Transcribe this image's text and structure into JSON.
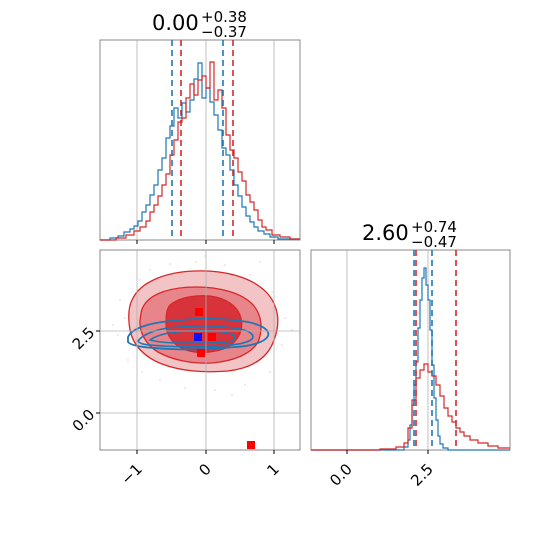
{
  "colors": {
    "series_a": "#1f77b4",
    "series_b": "#d62728",
    "grid": "#b0b0b0",
    "spine": "#888888"
  },
  "chart_data": {
    "type": "corner",
    "panels": [
      {
        "id": "p0-hist",
        "type": "histogram",
        "title": {
          "value": "0.00",
          "upper": "+0.38",
          "lower": "−0.37"
        },
        "xlim": [
          -1.5,
          1.35
        ],
        "xticks": [
          -1,
          0,
          1
        ],
        "series": [
          {
            "color_key": "series_a",
            "quantiles": [
              -0.5,
              0.0,
              0.25
            ]
          },
          {
            "color_key": "series_b",
            "quantiles": [
              -0.37,
              0.0,
              0.38
            ]
          }
        ]
      },
      {
        "id": "p1-hist",
        "type": "histogram",
        "title": {
          "value": "2.60",
          "upper": "+0.74",
          "lower": "−0.47"
        },
        "xlim": [
          -1.0,
          4.9
        ],
        "xticks": [
          0.0,
          2.5
        ],
        "xtick_labels": [
          "0.0",
          "2.5"
        ],
        "series": [
          {
            "color_key": "series_a",
            "quantiles": [
              2.1,
              2.3,
              2.6
            ]
          },
          {
            "color_key": "series_b",
            "quantiles": [
              2.13,
              2.6,
              3.34
            ]
          }
        ]
      },
      {
        "id": "p10-2d",
        "type": "contour",
        "xlim": [
          -1.5,
          1.35
        ],
        "ylim": [
          -1.1,
          5.0
        ],
        "xticks": [
          -1,
          0,
          1
        ],
        "xtick_labels": [
          "−1",
          "0",
          "1"
        ],
        "yticks": [
          0.0,
          2.5
        ],
        "ytick_labels": [
          "0.0",
          "2.5"
        ],
        "markers": [
          {
            "x": -0.12,
            "y": 2.35,
            "color_key": "series_a"
          },
          {
            "x": -0.08,
            "y": 1.85,
            "color_key": "series_b"
          },
          {
            "x": 0.05,
            "y": 2.35,
            "color_key": "series_b"
          },
          {
            "x": -0.1,
            "y": 3.1,
            "color_key": "series_b"
          },
          {
            "x": 0.65,
            "y": -0.95,
            "color_key": "series_b"
          }
        ]
      }
    ]
  }
}
